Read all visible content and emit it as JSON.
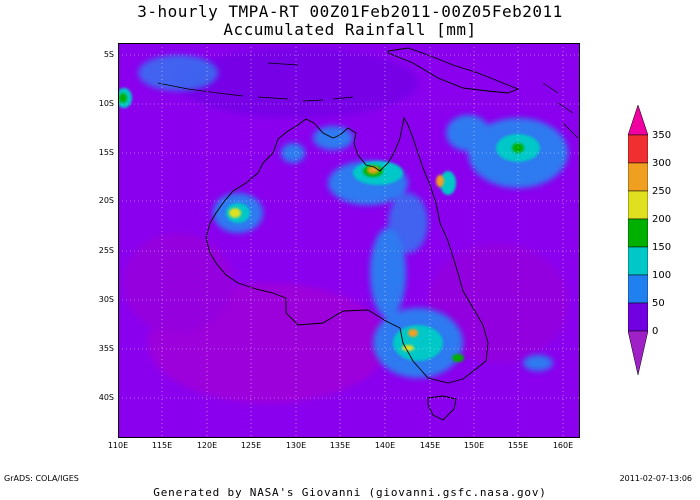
{
  "title_line1": "3-hourly TMPA-RT 00Z01Feb2011-00Z05Feb2011",
  "title_line2": "Accumulated Rainfall [mm]",
  "lat_labels": [
    "5S",
    "10S",
    "15S",
    "20S",
    "25S",
    "30S",
    "35S",
    "40S"
  ],
  "lon_labels": [
    "110E",
    "115E",
    "120E",
    "125E",
    "130E",
    "135E",
    "140E",
    "145E",
    "150E",
    "155E",
    "160E"
  ],
  "colorbar": {
    "labels": [
      "0",
      "50",
      "100",
      "150",
      "200",
      "250",
      "300",
      "350"
    ],
    "colors": [
      "#a020c8",
      "#7000e0",
      "#2080f0",
      "#00c8c8",
      "#00b000",
      "#e0e020",
      "#f0a020",
      "#f03030",
      "#f000a0"
    ]
  },
  "footer_left": "GrADS: COLA/IGES",
  "footer_right": "2011-02-07-13:06",
  "credit": "Generated by NASA's Giovanni (giovanni.gsfc.nasa.gov)",
  "colors": {
    "background_field": "#8a00ee",
    "land_outline": "#000000"
  }
}
